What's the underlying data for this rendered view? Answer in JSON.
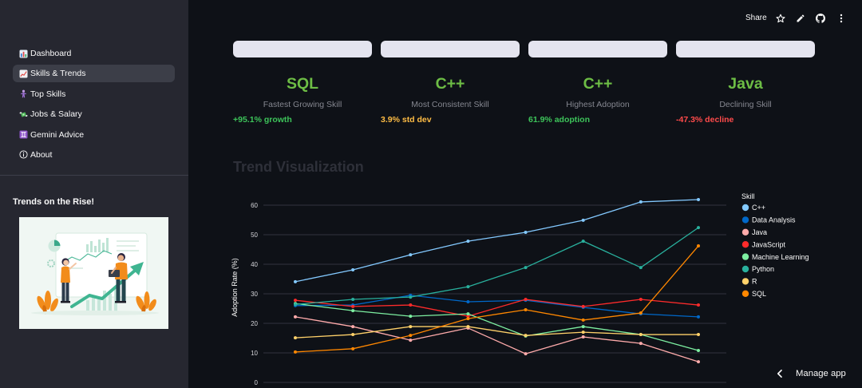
{
  "header": {
    "share_label": "Share",
    "icons": [
      "star-icon",
      "pencil-icon",
      "github-icon",
      "more-vertical-icon"
    ]
  },
  "sidebar": {
    "nav": [
      {
        "icon": "bar-chart-icon",
        "label": "Dashboard",
        "selected": false
      },
      {
        "icon": "chart-increasing-icon",
        "label": "Skills & Trends",
        "selected": true
      },
      {
        "icon": "person-icon",
        "label": "Top Skills",
        "selected": false
      },
      {
        "icon": "money-icon",
        "label": "Jobs & Salary",
        "selected": false
      },
      {
        "icon": "gemini-icon",
        "label": "Gemini Advice",
        "selected": false
      },
      {
        "icon": "info-icon",
        "label": "About",
        "selected": false
      }
    ],
    "section_title": "Trends on the Rise!",
    "illustration_icon": "trends-illustration"
  },
  "metrics": [
    {
      "value": "SQL",
      "label": "Fastest Growing Skill",
      "delta": "+95.1% growth",
      "value_color": "#6dbd45",
      "delta_color": "#3dc45a"
    },
    {
      "value": "C++",
      "label": "Most Consistent Skill",
      "delta": "3.9% std dev",
      "value_color": "#6dbd45",
      "delta_color": "#ffbd45"
    },
    {
      "value": "C++",
      "label": "Highest Adoption",
      "delta": "61.9% adoption",
      "value_color": "#6dbd45",
      "delta_color": "#3dc45a"
    },
    {
      "value": "Java",
      "label": "Declining Skill",
      "delta": "-47.3% decline",
      "value_color": "#6dbd45",
      "delta_color": "#ff4b4b"
    }
  ],
  "section_heading": "Trend Visualization",
  "chart_data": {
    "type": "line",
    "title": "",
    "xlabel": "",
    "ylabel": "Adoption Rate (%)",
    "ylim": [
      0,
      65
    ],
    "y_ticks": [
      0,
      10,
      20,
      30,
      40,
      50,
      60
    ],
    "grid": true,
    "legend": {
      "title": "Skill",
      "position": "right"
    },
    "series": [
      {
        "name": "C++",
        "color": "#83c9ff",
        "values": [
          34.1,
          38.1,
          43.2,
          47.8,
          50.8,
          54.9,
          61.1,
          61.9
        ]
      },
      {
        "name": "Data Analysis",
        "color": "#0068c9",
        "values": [
          26.0,
          26.2,
          29.5,
          27.3,
          27.8,
          25.4,
          23.2,
          22.2
        ]
      },
      {
        "name": "Java",
        "color": "#ffabab",
        "values": [
          22.2,
          18.9,
          14.3,
          18.4,
          9.7,
          15.4,
          13.2,
          7.0
        ]
      },
      {
        "name": "JavaScript",
        "color": "#ff2b2b",
        "values": [
          27.8,
          25.7,
          26.2,
          22.4,
          28.1,
          25.7,
          28.1,
          26.2
        ]
      },
      {
        "name": "Machine Learning",
        "color": "#7defa1",
        "values": [
          26.7,
          24.3,
          22.4,
          23.2,
          15.7,
          18.9,
          16.2,
          10.8
        ]
      },
      {
        "name": "Python",
        "color": "#29b09d",
        "values": [
          26.4,
          28.1,
          28.9,
          32.4,
          38.9,
          47.8,
          38.9,
          52.4
        ]
      },
      {
        "name": "R",
        "color": "#ffd16a",
        "values": [
          15.1,
          16.2,
          18.9,
          18.9,
          15.9,
          17.0,
          16.2,
          16.2
        ]
      },
      {
        "name": "SQL",
        "color": "#ff8700",
        "values": [
          10.3,
          11.4,
          15.9,
          21.6,
          24.6,
          21.1,
          23.5,
          46.2
        ]
      }
    ]
  },
  "manage_app": {
    "label": "Manage app",
    "icon": "chevron-left-icon"
  },
  "colors": {
    "main_bg": "#0e1117",
    "sidebar_bg": "#262730",
    "selected_nav_bg": "#3c3e48",
    "metric_value": "#6dbd45",
    "metric_box": "#e4e4ef"
  }
}
